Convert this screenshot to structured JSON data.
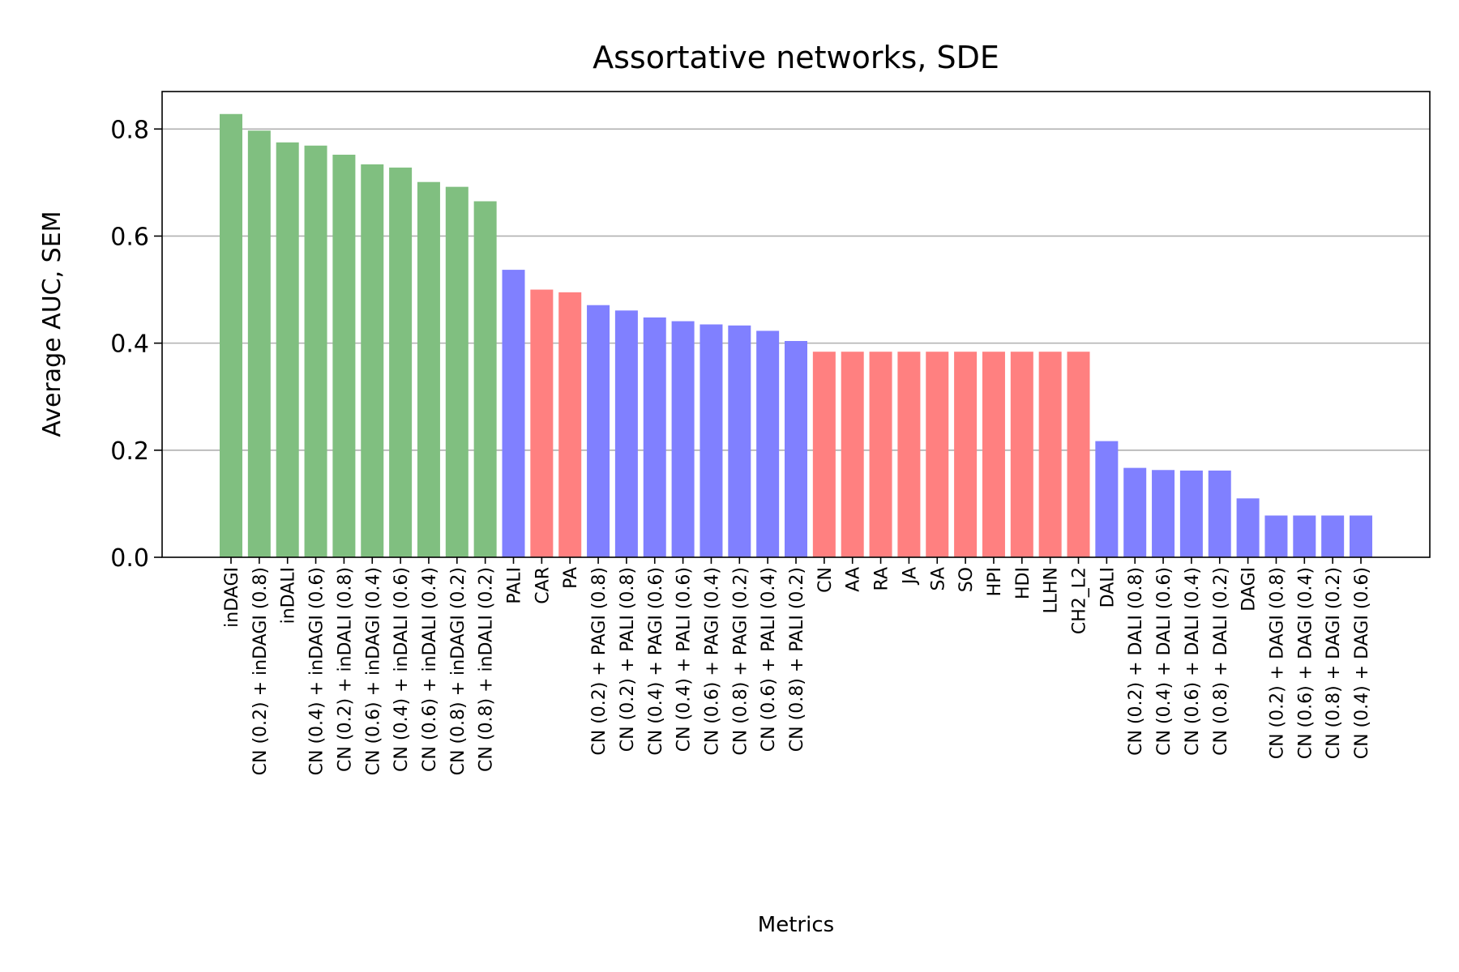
{
  "chart_data": {
    "type": "bar",
    "title": "Assortative networks, SDE",
    "xlabel": "Metrics",
    "ylabel": "Average AUC, SEM",
    "ylim": [
      0,
      0.87
    ],
    "yticks": [
      "0.0",
      "0.2",
      "0.4",
      "0.6",
      "0.8"
    ],
    "ytick_values": [
      0,
      0.2,
      0.4,
      0.6,
      0.8
    ],
    "grid": "y",
    "colors": {
      "green": "#80bf80",
      "blue": "#8080ff",
      "red": "#ff8080"
    },
    "categories": [
      "inDAGI",
      "CN (0.2) + inDAGI (0.8)",
      "inDALI",
      "CN (0.4) + inDAGI (0.6)",
      "CN (0.2) + inDALI (0.8)",
      "CN (0.6) + inDAGI (0.4)",
      "CN (0.4) + inDALI (0.6)",
      "CN (0.6) + inDALI (0.4)",
      "CN (0.8) + inDAGI (0.2)",
      "CN (0.8) + inDALI (0.2)",
      "PALI",
      "CAR",
      "PA",
      "CN (0.2) + PAGI (0.8)",
      "CN (0.2) + PALI (0.8)",
      "CN (0.4) + PAGI (0.6)",
      "CN (0.4) + PALI (0.6)",
      "CN (0.6) + PAGI (0.4)",
      "CN (0.8) + PAGI (0.2)",
      "CN (0.6) + PALI (0.4)",
      "CN (0.8) + PALI (0.2)",
      "CN",
      "AA",
      "RA",
      "JA",
      "SA",
      "SO",
      "HPI",
      "HDI",
      "LLHN",
      "CH2_L2",
      "DALI",
      "CN (0.2) + DALI (0.8)",
      "CN (0.4) + DALI (0.6)",
      "CN (0.6) + DALI (0.4)",
      "CN (0.8) + DALI (0.2)",
      "DAGI",
      "CN (0.2) + DAGI (0.8)",
      "CN (0.6) + DAGI (0.4)",
      "CN (0.8) + DAGI (0.2)",
      "CN (0.4) + DAGI (0.6)"
    ],
    "values": [
      0.828,
      0.797,
      0.775,
      0.769,
      0.752,
      0.734,
      0.728,
      0.701,
      0.692,
      0.665,
      0.537,
      0.5,
      0.495,
      0.471,
      0.461,
      0.448,
      0.441,
      0.435,
      0.433,
      0.423,
      0.404,
      0.384,
      0.384,
      0.384,
      0.384,
      0.384,
      0.384,
      0.384,
      0.384,
      0.384,
      0.384,
      0.217,
      0.167,
      0.163,
      0.162,
      0.162,
      0.11,
      0.078,
      0.078,
      0.078,
      0.078
    ],
    "bar_colors": [
      "green",
      "green",
      "green",
      "green",
      "green",
      "green",
      "green",
      "green",
      "green",
      "green",
      "blue",
      "red",
      "red",
      "blue",
      "blue",
      "blue",
      "blue",
      "blue",
      "blue",
      "blue",
      "blue",
      "red",
      "red",
      "red",
      "red",
      "red",
      "red",
      "red",
      "red",
      "red",
      "red",
      "blue",
      "blue",
      "blue",
      "blue",
      "blue",
      "blue",
      "blue",
      "blue",
      "blue",
      "blue"
    ]
  }
}
